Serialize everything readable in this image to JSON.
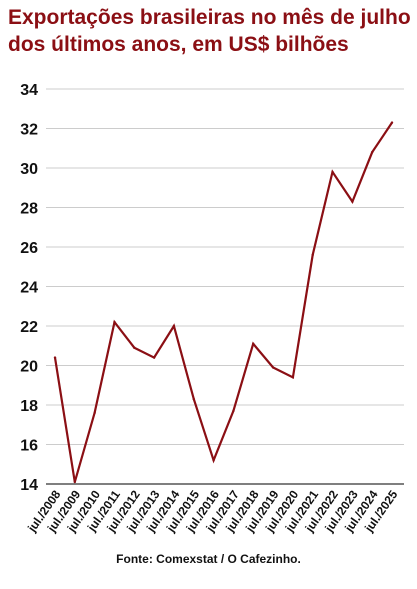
{
  "chart_data": {
    "type": "line",
    "title": "Exportações brasileiras no mês de julho dos últimos anos, em US$ bilhões",
    "source": "Fonte: Comexstat / O Cafezinho.",
    "categories": [
      "jul./2008",
      "jul./2009",
      "jul./2010",
      "jul./2011",
      "jul./2012",
      "jul./2013",
      "jul./2014",
      "jul./2015",
      "jul./2016",
      "jul./2017",
      "jul./2018",
      "jul./2019",
      "jul./2020",
      "jul./2021",
      "jul./2022",
      "jul./2023",
      "jul./2024",
      "jul./2025"
    ],
    "series": [
      {
        "values": [
          20.4,
          14.1,
          17.6,
          22.2,
          20.9,
          20.4,
          22.0,
          18.3,
          15.2,
          17.7,
          21.1,
          19.9,
          19.4,
          25.6,
          29.8,
          28.3,
          30.8,
          32.3
        ]
      }
    ],
    "ylim": [
      14,
      34
    ],
    "yticks": [
      14,
      16,
      18,
      20,
      22,
      24,
      26,
      28,
      30,
      32,
      34
    ],
    "xlabel": "",
    "ylabel": "",
    "grid": true,
    "colors": {
      "line": "#8b0f14",
      "title": "#8b0f14",
      "grid": "#cccccc"
    }
  }
}
